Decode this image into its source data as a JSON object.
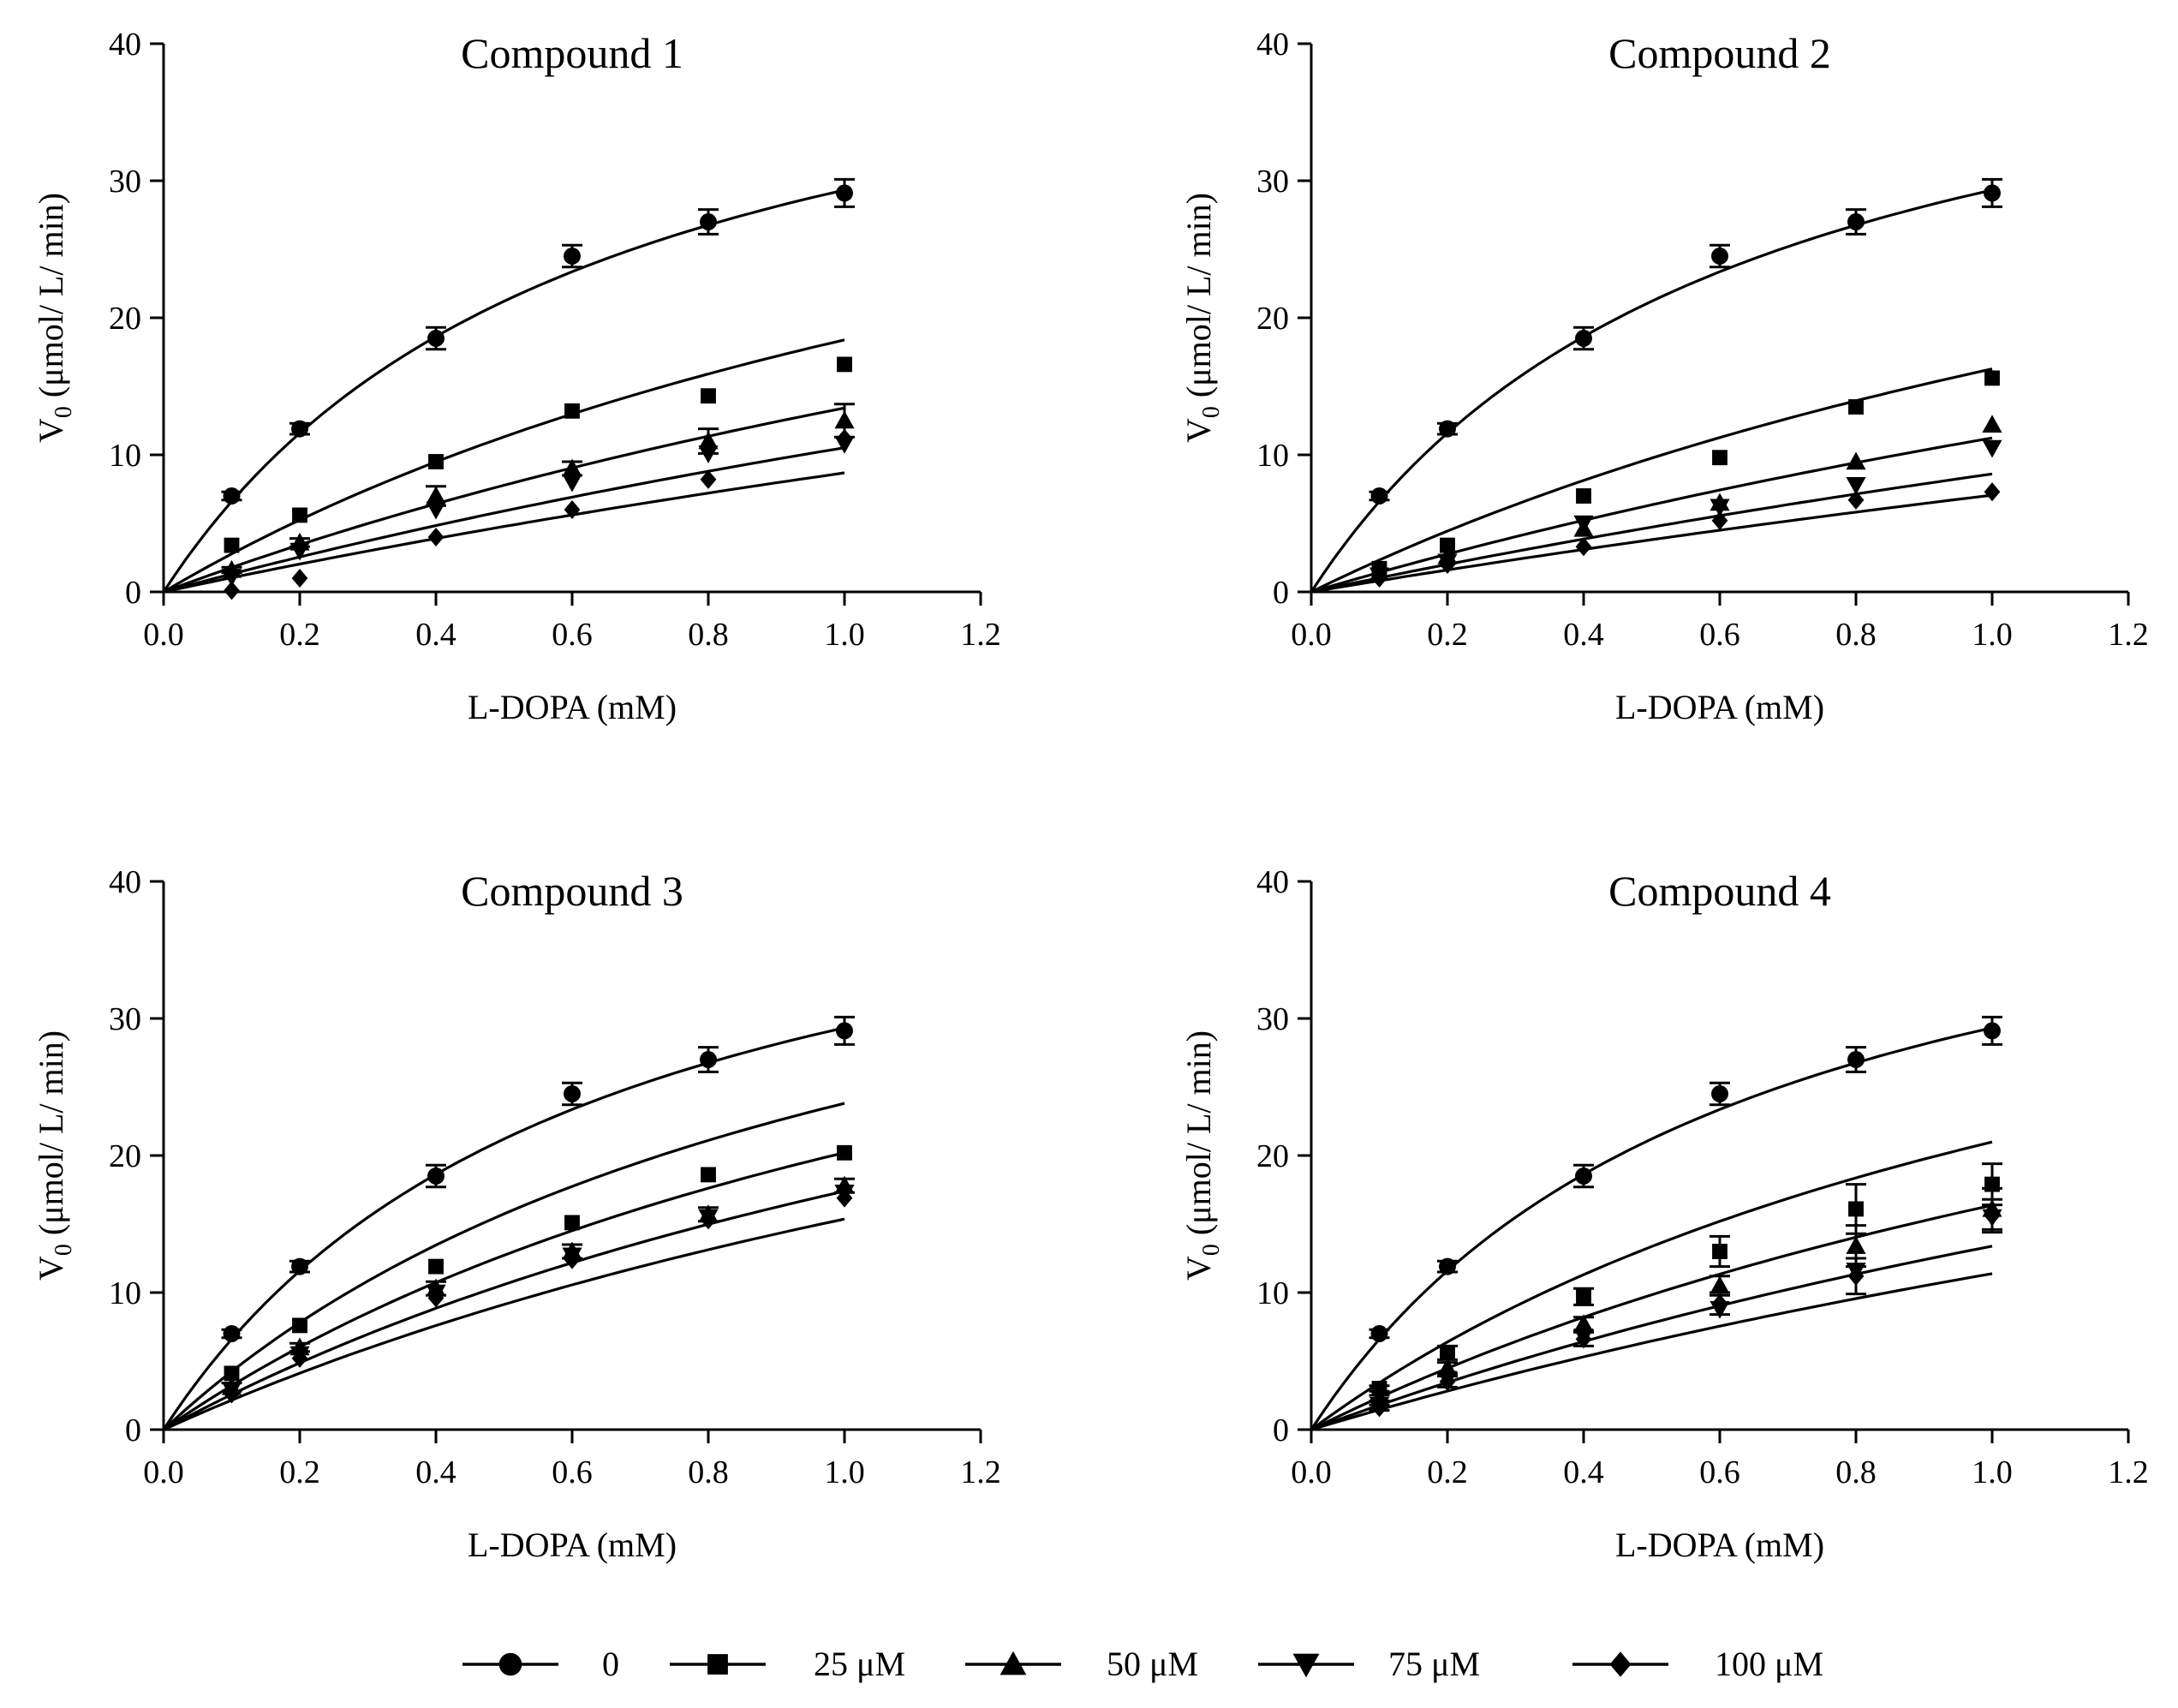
{
  "legend": {
    "entries": [
      {
        "label": "0",
        "marker": "circle"
      },
      {
        "label": "25 μM",
        "marker": "square"
      },
      {
        "label": "50 μM",
        "marker": "triangle-up"
      },
      {
        "label": "75 μM",
        "marker": "triangle-down"
      },
      {
        "label": "100 μM",
        "marker": "diamond"
      }
    ]
  },
  "chart_data": [
    {
      "type": "scatter",
      "title": "Compound 1",
      "xlabel": "L-DOPA (mM)",
      "ylabel_main": "V",
      "ylabel_sub": "0",
      "ylabel_rest": " (μmol/ L/ min)",
      "xlim": [
        0,
        1.2
      ],
      "ylim": [
        0,
        40
      ],
      "xticks": [
        "0.0",
        "0.2",
        "0.4",
        "0.6",
        "0.8",
        "1.0",
        "1.2"
      ],
      "yticks": [
        "0",
        "10",
        "20",
        "30",
        "40"
      ],
      "x": [
        0.1,
        0.2,
        0.4,
        0.6,
        0.8,
        1.0
      ],
      "series": [
        {
          "name": "0",
          "marker": "circle",
          "values": [
            7.0,
            11.9,
            18.5,
            24.5,
            27.0,
            29.1
          ],
          "errors": [
            0.3,
            0.4,
            0.8,
            0.8,
            0.9,
            1.0
          ],
          "fit": {
            "vmax": 47.5,
            "km": 0.62
          }
        },
        {
          "name": "25 μM",
          "marker": "square",
          "values": [
            3.4,
            5.6,
            9.5,
            13.2,
            14.3,
            16.6
          ],
          "errors": [
            0,
            0,
            0,
            0,
            0,
            0
          ],
          "fit": {
            "vmax": 49.1,
            "km": 1.67
          }
        },
        {
          "name": "50 μM",
          "marker": "triangle-up",
          "values": [
            1.6,
            3.6,
            7.0,
            9.0,
            11.0,
            12.5
          ],
          "errors": [
            0.2,
            0.3,
            0.7,
            0.5,
            0.9,
            1.2
          ],
          "fit": {
            "vmax": 48.7,
            "km": 2.63
          }
        },
        {
          "name": "75 μM",
          "marker": "triangle-down",
          "values": [
            1.1,
            3.0,
            6.0,
            8.0,
            10.1,
            10.8
          ],
          "errors": [
            0,
            0,
            0,
            0,
            0,
            0
          ],
          "fit": {
            "vmax": 48.4,
            "km": 3.6
          }
        },
        {
          "name": "100 μM",
          "marker": "diamond",
          "values": [
            0.1,
            1.0,
            4.0,
            6.0,
            8.2,
            11.2
          ],
          "errors": [
            0,
            0,
            0,
            0,
            0,
            0
          ],
          "fit": {
            "vmax": 48.2,
            "km": 4.55
          }
        }
      ]
    },
    {
      "type": "scatter",
      "title": "Compound 2",
      "xlabel": "L-DOPA (mM)",
      "ylabel_main": "V",
      "ylabel_sub": "0",
      "ylabel_rest": " (μmol/ L/ min)",
      "xlim": [
        0,
        1.2
      ],
      "ylim": [
        0,
        40
      ],
      "xticks": [
        "0.0",
        "0.2",
        "0.4",
        "0.6",
        "0.8",
        "1.0",
        "1.2"
      ],
      "yticks": [
        "0",
        "10",
        "20",
        "30",
        "40"
      ],
      "x": [
        0.1,
        0.2,
        0.4,
        0.6,
        0.8,
        1.0
      ],
      "series": [
        {
          "name": "0",
          "marker": "circle",
          "values": [
            7.0,
            11.9,
            18.5,
            24.5,
            27.0,
            29.1
          ],
          "errors": [
            0.3,
            0.4,
            0.8,
            0.8,
            0.9,
            1.0
          ],
          "fit": {
            "vmax": 47.5,
            "km": 0.62
          }
        },
        {
          "name": "25 μM",
          "marker": "square",
          "values": [
            1.7,
            3.4,
            7.0,
            9.8,
            13.5,
            15.6
          ],
          "errors": [
            0,
            0,
            0,
            0,
            0,
            0
          ],
          "fit": {
            "vmax": 48.8,
            "km": 2.0
          }
        },
        {
          "name": "50 μM",
          "marker": "triangle-up",
          "values": [
            1.4,
            2.6,
            4.6,
            6.5,
            9.5,
            12.2
          ],
          "errors": [
            0,
            0,
            0,
            0,
            0,
            0
          ],
          "fit": {
            "vmax": 48.3,
            "km": 3.3
          }
        },
        {
          "name": "75 μM",
          "marker": "triangle-down",
          "values": [
            1.2,
            2.2,
            5.0,
            6.2,
            7.8,
            10.5
          ],
          "errors": [
            0,
            0,
            0,
            0,
            0,
            0
          ],
          "fit": {
            "vmax": 48.2,
            "km": 4.6
          }
        },
        {
          "name": "100 μM",
          "marker": "diamond",
          "values": [
            1.0,
            2.0,
            3.3,
            5.2,
            6.7,
            7.3
          ],
          "errors": [
            0,
            0,
            0,
            0,
            0,
            0
          ],
          "fit": {
            "vmax": 48.0,
            "km": 5.8
          }
        }
      ]
    },
    {
      "type": "scatter",
      "title": "Compound 3",
      "xlabel": "L-DOPA (mM)",
      "ylabel_main": "V",
      "ylabel_sub": "0",
      "ylabel_rest": " (μmol/ L/ min)",
      "xlim": [
        0,
        1.2
      ],
      "ylim": [
        0,
        40
      ],
      "xticks": [
        "0.0",
        "0.2",
        "0.4",
        "0.6",
        "0.8",
        "1.0",
        "1.2"
      ],
      "yticks": [
        "0",
        "10",
        "20",
        "30",
        "40"
      ],
      "x": [
        0.1,
        0.2,
        0.4,
        0.6,
        0.8,
        1.0
      ],
      "series": [
        {
          "name": "0",
          "marker": "circle",
          "values": [
            7.0,
            11.9,
            18.5,
            24.5,
            27.0,
            29.1
          ],
          "errors": [
            0.3,
            0.4,
            0.8,
            0.8,
            0.9,
            1.0
          ],
          "fit": {
            "vmax": 47.5,
            "km": 0.62
          }
        },
        {
          "name": "25 μM",
          "marker": "square",
          "values": [
            4.1,
            7.6,
            11.9,
            15.1,
            18.6,
            20.2
          ],
          "errors": [
            0,
            0,
            0,
            0,
            0,
            0
          ],
          "fit": {
            "vmax": 48.8,
            "km": 1.05
          }
        },
        {
          "name": "50 μM",
          "marker": "triangle-up",
          "values": [
            3.1,
            6.0,
            10.3,
            13.0,
            15.7,
            17.8
          ],
          "errors": [
            0.3,
            0.3,
            0.5,
            0.5,
            0.5,
            0.5
          ],
          "fit": {
            "vmax": 49.1,
            "km": 1.43
          }
        },
        {
          "name": "75 μM",
          "marker": "triangle-down",
          "values": [
            2.9,
            5.5,
            10.0,
            12.7,
            15.5,
            17.3
          ],
          "errors": [
            0,
            0,
            0,
            0,
            0,
            0
          ],
          "fit": {
            "vmax": 48.7,
            "km": 1.8
          }
        },
        {
          "name": "100 μM",
          "marker": "diamond",
          "values": [
            2.6,
            5.2,
            9.6,
            12.4,
            15.3,
            16.9
          ],
          "errors": [
            0,
            0,
            0,
            0,
            0,
            0
          ],
          "fit": {
            "vmax": 48.4,
            "km": 2.15
          }
        }
      ]
    },
    {
      "type": "scatter",
      "title": "Compound 4",
      "xlabel": "L-DOPA (mM)",
      "ylabel_main": "V",
      "ylabel_sub": "0",
      "ylabel_rest": " (μmol/ L/ min)",
      "xlim": [
        0,
        1.2
      ],
      "ylim": [
        0,
        40
      ],
      "xticks": [
        "0.0",
        "0.2",
        "0.4",
        "0.6",
        "0.8",
        "1.0",
        "1.2"
      ],
      "yticks": [
        "0",
        "10",
        "20",
        "30",
        "40"
      ],
      "x": [
        0.1,
        0.2,
        0.4,
        0.6,
        0.8,
        1.0
      ],
      "series": [
        {
          "name": "0",
          "marker": "circle",
          "values": [
            7.0,
            11.9,
            18.5,
            24.5,
            27.0,
            29.1
          ],
          "errors": [
            0.3,
            0.4,
            0.8,
            0.8,
            0.9,
            1.0
          ],
          "fit": {
            "vmax": 47.5,
            "km": 0.62
          }
        },
        {
          "name": "25 μM",
          "marker": "square",
          "values": [
            3.0,
            5.6,
            9.7,
            13.0,
            16.1,
            17.9
          ],
          "errors": [
            0.2,
            0.5,
            0.6,
            1.1,
            1.8,
            1.5
          ],
          "fit": {
            "vmax": 48.9,
            "km": 1.33
          }
        },
        {
          "name": "50 μM",
          "marker": "triangle-up",
          "values": [
            2.3,
            4.5,
            7.7,
            10.5,
            13.4,
            16.1
          ],
          "errors": [
            0.2,
            0.4,
            0.5,
            0.7,
            1.5,
            1.5
          ],
          "fit": {
            "vmax": 48.6,
            "km": 1.97
          }
        },
        {
          "name": "75 μM",
          "marker": "triangle-down",
          "values": [
            1.8,
            3.7,
            6.8,
            8.8,
            11.6,
            15.5
          ],
          "errors": [
            0,
            0,
            0,
            0,
            0,
            0
          ],
          "fit": {
            "vmax": 48.2,
            "km": 2.6
          }
        },
        {
          "name": "100 μM",
          "marker": "diamond",
          "values": [
            1.6,
            3.5,
            6.6,
            9.2,
            11.2,
            15.6
          ],
          "errors": [
            0.2,
            0.4,
            0.5,
            0.8,
            1.3,
            1.2
          ],
          "fit": {
            "vmax": 47.8,
            "km": 3.2
          }
        }
      ]
    }
  ]
}
